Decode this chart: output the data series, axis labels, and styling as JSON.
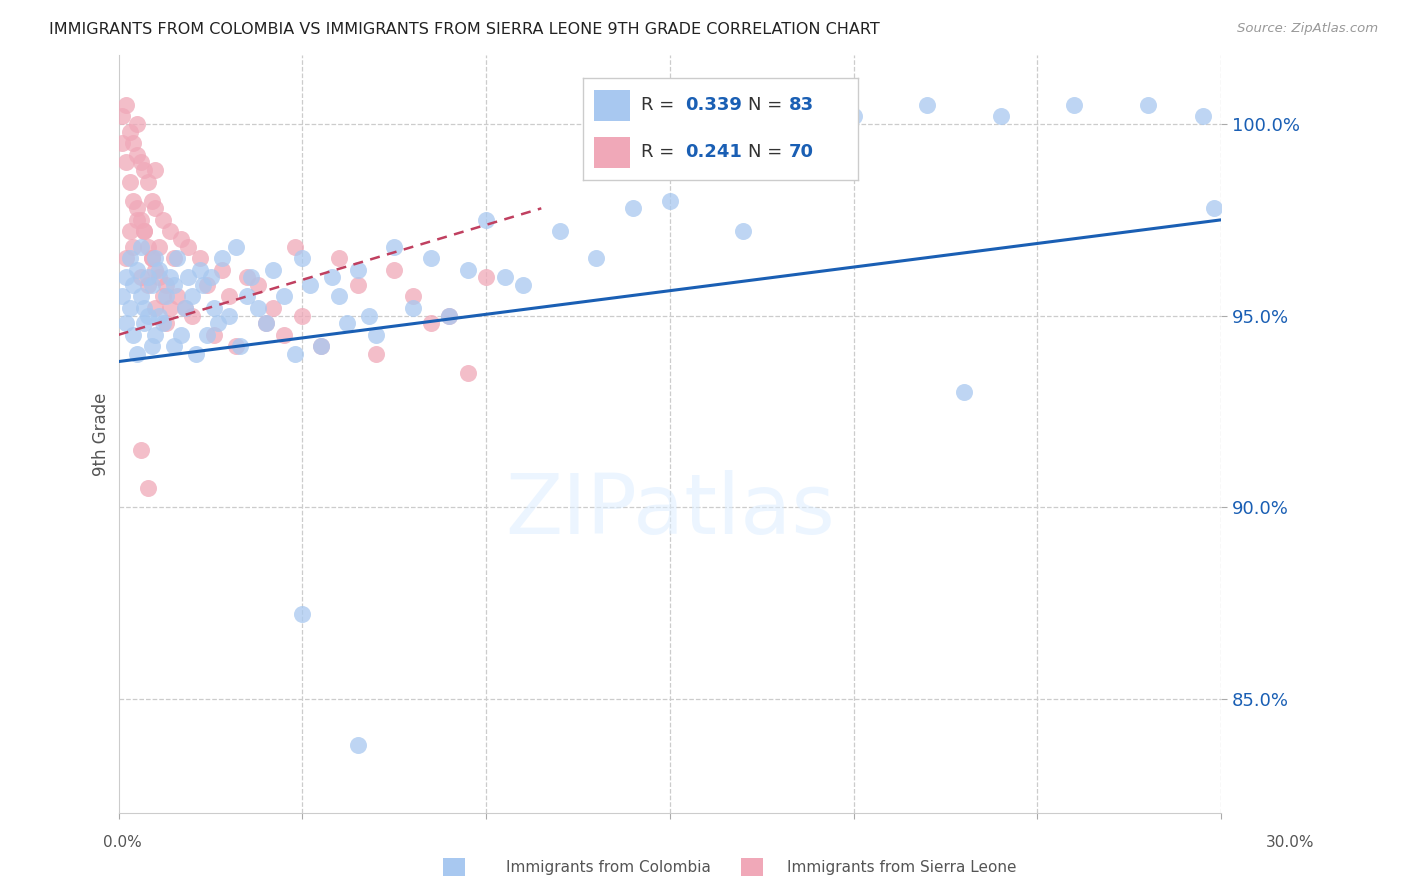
{
  "title": "IMMIGRANTS FROM COLOMBIA VS IMMIGRANTS FROM SIERRA LEONE 9TH GRADE CORRELATION CHART",
  "source": "Source: ZipAtlas.com",
  "ylabel": "9th Grade",
  "xlim": [
    0.0,
    0.3
  ],
  "ylim": [
    82.0,
    101.8
  ],
  "y_ticks": [
    85.0,
    90.0,
    95.0,
    100.0
  ],
  "legend_blue_r": "0.339",
  "legend_blue_n": "83",
  "legend_pink_r": "0.241",
  "legend_pink_n": "70",
  "blue_color": "#a8c8f0",
  "pink_color": "#f0a8b8",
  "blue_line_color": "#1a5fb4",
  "pink_line_color": "#c04060",
  "r_color": "#1a5fb4",
  "n_color": "#1a5fb4",
  "watermark_text": "ZIPatlas",
  "blue_line_x0": 0.0,
  "blue_line_y0": 93.8,
  "blue_line_x1": 0.3,
  "blue_line_y1": 97.5,
  "pink_line_x0": 0.0,
  "pink_line_y0": 94.5,
  "pink_line_x1": 0.115,
  "pink_line_y1": 97.8,
  "blue_scatter_x": [
    0.001,
    0.002,
    0.002,
    0.003,
    0.003,
    0.004,
    0.004,
    0.005,
    0.005,
    0.006,
    0.006,
    0.007,
    0.007,
    0.008,
    0.008,
    0.009,
    0.009,
    0.01,
    0.01,
    0.011,
    0.011,
    0.012,
    0.013,
    0.014,
    0.015,
    0.015,
    0.016,
    0.017,
    0.018,
    0.019,
    0.02,
    0.021,
    0.022,
    0.023,
    0.024,
    0.025,
    0.026,
    0.027,
    0.028,
    0.03,
    0.032,
    0.033,
    0.035,
    0.036,
    0.038,
    0.04,
    0.042,
    0.045,
    0.048,
    0.05,
    0.052,
    0.055,
    0.058,
    0.06,
    0.062,
    0.065,
    0.068,
    0.07,
    0.075,
    0.08,
    0.085,
    0.09,
    0.095,
    0.1,
    0.105,
    0.11,
    0.12,
    0.13,
    0.14,
    0.15,
    0.16,
    0.17,
    0.18,
    0.2,
    0.22,
    0.24,
    0.26,
    0.28,
    0.295,
    0.298,
    0.05,
    0.065,
    0.23
  ],
  "blue_scatter_y": [
    95.5,
    96.0,
    94.8,
    95.2,
    96.5,
    94.5,
    95.8,
    96.2,
    94.0,
    95.5,
    96.8,
    94.8,
    95.2,
    95.0,
    96.0,
    94.2,
    95.8,
    96.5,
    94.5,
    95.0,
    96.2,
    94.8,
    95.5,
    96.0,
    94.2,
    95.8,
    96.5,
    94.5,
    95.2,
    96.0,
    95.5,
    94.0,
    96.2,
    95.8,
    94.5,
    96.0,
    95.2,
    94.8,
    96.5,
    95.0,
    96.8,
    94.2,
    95.5,
    96.0,
    95.2,
    94.8,
    96.2,
    95.5,
    94.0,
    96.5,
    95.8,
    94.2,
    96.0,
    95.5,
    94.8,
    96.2,
    95.0,
    94.5,
    96.8,
    95.2,
    96.5,
    95.0,
    96.2,
    97.5,
    96.0,
    95.8,
    97.2,
    96.5,
    97.8,
    98.0,
    100.2,
    97.2,
    100.5,
    100.2,
    100.5,
    100.2,
    100.5,
    100.5,
    100.2,
    97.8,
    87.2,
    83.8,
    93.0
  ],
  "pink_scatter_x": [
    0.001,
    0.001,
    0.002,
    0.002,
    0.003,
    0.003,
    0.004,
    0.004,
    0.005,
    0.005,
    0.005,
    0.006,
    0.006,
    0.007,
    0.007,
    0.008,
    0.008,
    0.009,
    0.009,
    0.01,
    0.01,
    0.01,
    0.011,
    0.012,
    0.013,
    0.014,
    0.015,
    0.016,
    0.017,
    0.018,
    0.019,
    0.02,
    0.022,
    0.024,
    0.026,
    0.028,
    0.03,
    0.032,
    0.035,
    0.038,
    0.04,
    0.042,
    0.045,
    0.048,
    0.05,
    0.055,
    0.06,
    0.065,
    0.07,
    0.075,
    0.08,
    0.085,
    0.09,
    0.095,
    0.1,
    0.002,
    0.003,
    0.004,
    0.005,
    0.006,
    0.007,
    0.008,
    0.009,
    0.01,
    0.011,
    0.012,
    0.013,
    0.014,
    0.006,
    0.008
  ],
  "pink_scatter_y": [
    99.5,
    100.2,
    99.0,
    100.5,
    98.5,
    99.8,
    98.0,
    99.5,
    97.8,
    99.2,
    100.0,
    97.5,
    99.0,
    97.2,
    98.8,
    96.8,
    98.5,
    96.5,
    98.0,
    96.2,
    97.8,
    98.8,
    96.0,
    97.5,
    95.8,
    97.2,
    96.5,
    95.5,
    97.0,
    95.2,
    96.8,
    95.0,
    96.5,
    95.8,
    94.5,
    96.2,
    95.5,
    94.2,
    96.0,
    95.8,
    94.8,
    95.2,
    94.5,
    96.8,
    95.0,
    94.2,
    96.5,
    95.8,
    94.0,
    96.2,
    95.5,
    94.8,
    95.0,
    93.5,
    96.0,
    96.5,
    97.2,
    96.8,
    97.5,
    96.0,
    97.2,
    95.8,
    96.5,
    95.2,
    96.8,
    95.5,
    94.8,
    95.2,
    91.5,
    90.5
  ]
}
